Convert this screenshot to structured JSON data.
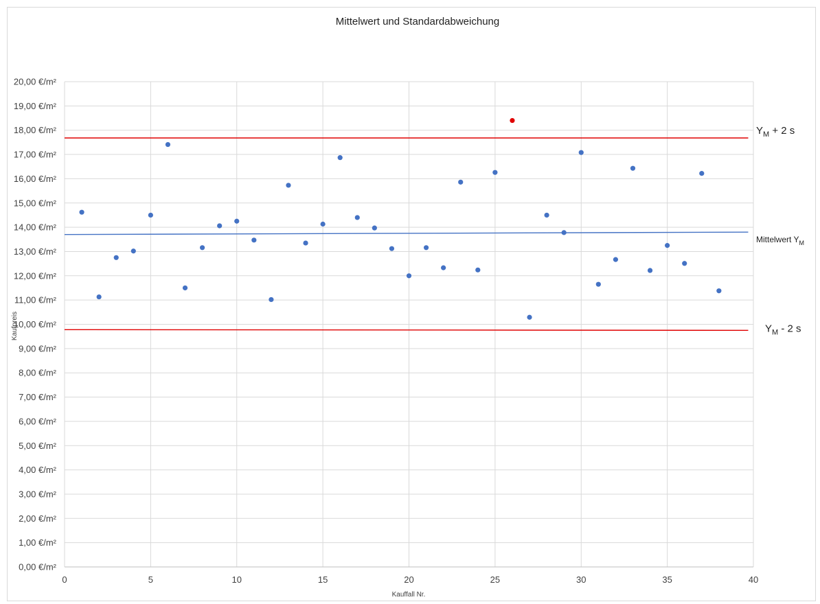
{
  "chart_data": {
    "type": "scatter",
    "title": "Mittelwert und Standardabweichung",
    "xlabel": "Kauffall Nr.",
    "ylabel": "Kaufpreis",
    "xlim": [
      0,
      40
    ],
    "ylim": [
      0,
      20
    ],
    "x_ticks": [
      "0",
      "5",
      "10",
      "15",
      "20",
      "25",
      "30",
      "35",
      "40"
    ],
    "y_ticks": [
      "0,00 €/m²",
      "1,00 €/m²",
      "2,00 €/m²",
      "3,00 €/m²",
      "4,00 €/m²",
      "5,00 €/m²",
      "6,00 €/m²",
      "7,00 €/m²",
      "8,00 €/m²",
      "9,00 €/m²",
      "10,00 €/m²",
      "11,00 €/m²",
      "12,00 €/m²",
      "13,00 €/m²",
      "14,00 €/m²",
      "15,00 €/m²",
      "16,00 €/m²",
      "17,00 €/m²",
      "18,00 €/m²",
      "19,00 €/m²",
      "20,00 €/m²"
    ],
    "grid": true,
    "point_color": "#4472c4",
    "outlier_color": "#e00000",
    "points": [
      {
        "x": 1,
        "y": 14.62
      },
      {
        "x": 2,
        "y": 11.13
      },
      {
        "x": 3,
        "y": 12.75
      },
      {
        "x": 4,
        "y": 13.02
      },
      {
        "x": 5,
        "y": 14.5
      },
      {
        "x": 6,
        "y": 17.41
      },
      {
        "x": 7,
        "y": 11.5
      },
      {
        "x": 8,
        "y": 13.16
      },
      {
        "x": 9,
        "y": 14.06
      },
      {
        "x": 10,
        "y": 14.25
      },
      {
        "x": 11,
        "y": 13.47
      },
      {
        "x": 12,
        "y": 11.02
      },
      {
        "x": 13,
        "y": 15.73
      },
      {
        "x": 14,
        "y": 13.35
      },
      {
        "x": 15,
        "y": 14.13
      },
      {
        "x": 16,
        "y": 16.87
      },
      {
        "x": 17,
        "y": 14.4
      },
      {
        "x": 18,
        "y": 13.97
      },
      {
        "x": 19,
        "y": 13.12
      },
      {
        "x": 20,
        "y": 12.0
      },
      {
        "x": 21,
        "y": 13.16
      },
      {
        "x": 22,
        "y": 12.33
      },
      {
        "x": 23,
        "y": 15.86
      },
      {
        "x": 24,
        "y": 12.24
      },
      {
        "x": 25,
        "y": 16.26
      },
      {
        "x": 26,
        "y": 18.4,
        "outlier": true
      },
      {
        "x": 27,
        "y": 10.29
      },
      {
        "x": 28,
        "y": 14.5
      },
      {
        "x": 29,
        "y": 13.78
      },
      {
        "x": 30,
        "y": 17.08
      },
      {
        "x": 31,
        "y": 11.65
      },
      {
        "x": 32,
        "y": 12.67
      },
      {
        "x": 33,
        "y": 16.43
      },
      {
        "x": 34,
        "y": 12.22
      },
      {
        "x": 35,
        "y": 13.25
      },
      {
        "x": 36,
        "y": 12.51
      },
      {
        "x": 37,
        "y": 16.22
      },
      {
        "x": 38,
        "y": 11.38
      }
    ],
    "reference_lines": [
      {
        "id": "upper",
        "label_main": "Y",
        "label_sub": "M",
        "label_rest": " + 2 s",
        "x": [
          0,
          39.7
        ],
        "y": [
          17.68,
          17.68
        ],
        "color": "#e00000"
      },
      {
        "id": "mean",
        "label_main": "Mittelwert Y",
        "label_sub": "M",
        "label_rest": "",
        "x": [
          0,
          39.7
        ],
        "y": [
          13.7,
          13.8
        ],
        "color": "#4472c4"
      },
      {
        "id": "lower",
        "label_main": "Y",
        "label_sub": "M",
        "label_rest": " - 2 s",
        "x": [
          0,
          39.7
        ],
        "y": [
          9.78,
          9.75
        ],
        "color": "#e00000"
      }
    ]
  }
}
